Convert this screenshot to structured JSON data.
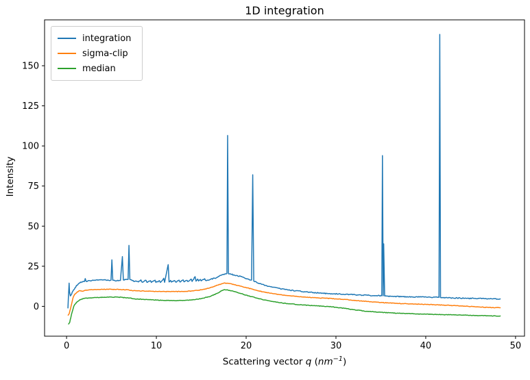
{
  "title": "1D integration",
  "axes": {
    "ylabel": "Intensity",
    "xlabel_parts": {
      "pre": "Scattering vector ",
      "q": "q",
      "mid": " (",
      "unit": "nm",
      "sup": "−1",
      "post": ")"
    }
  },
  "chart_data": {
    "type": "line",
    "title": "1D integration",
    "xlabel": "Scattering vector q (nm⁻¹)",
    "ylabel": "Intensity",
    "xlim": [
      -2.45,
      51.0
    ],
    "ylim": [
      -18.6,
      178.6
    ],
    "x_ticks": [
      0,
      10,
      20,
      30,
      40,
      50
    ],
    "y_ticks": [
      0,
      25,
      50,
      75,
      100,
      125,
      150
    ],
    "grid": false,
    "legend_position": "upper left",
    "series": [
      {
        "name": "integration",
        "color": "#1f77b4",
        "noise": 0.3,
        "points": [
          [
            0.15,
            -1
          ],
          [
            0.2,
            5
          ],
          [
            0.28,
            14.5
          ],
          [
            0.33,
            9
          ],
          [
            0.42,
            6.5
          ],
          [
            0.55,
            7.5
          ],
          [
            0.7,
            9.5
          ],
          [
            0.9,
            11
          ],
          [
            1.1,
            13
          ],
          [
            1.4,
            14.5
          ],
          [
            1.7,
            15.2
          ],
          [
            2.0,
            15.5
          ],
          [
            2.08,
            17.3
          ],
          [
            2.18,
            15.6
          ],
          [
            2.6,
            16
          ],
          [
            3.0,
            16.2
          ],
          [
            3.5,
            16.3
          ],
          [
            4.0,
            16.4
          ],
          [
            4.5,
            16.2
          ],
          [
            4.95,
            16.3
          ],
          [
            5.05,
            29
          ],
          [
            5.15,
            16.3
          ],
          [
            5.6,
            16
          ],
          [
            6.0,
            16.2
          ],
          [
            6.22,
            31
          ],
          [
            6.32,
            16.5
          ],
          [
            6.85,
            16.8
          ],
          [
            6.95,
            38
          ],
          [
            7.05,
            16.8
          ],
          [
            7.3,
            16.1
          ],
          [
            7.6,
            15.6
          ],
          [
            8.0,
            15.2
          ],
          [
            8.28,
            16.5
          ],
          [
            8.4,
            15.1
          ],
          [
            8.85,
            16.2
          ],
          [
            8.95,
            15
          ],
          [
            9.35,
            16
          ],
          [
            9.45,
            14.9
          ],
          [
            9.85,
            16.3
          ],
          [
            9.95,
            14.9
          ],
          [
            10.35,
            16
          ],
          [
            10.45,
            14.9
          ],
          [
            10.82,
            17.5
          ],
          [
            10.92,
            15
          ],
          [
            11.32,
            26
          ],
          [
            11.42,
            15.2
          ],
          [
            11.58,
            16.2
          ],
          [
            11.68,
            15.1
          ],
          [
            12.05,
            16
          ],
          [
            12.15,
            15.1
          ],
          [
            12.52,
            16.3
          ],
          [
            12.62,
            15.2
          ],
          [
            12.98,
            16.5
          ],
          [
            13.08,
            15.3
          ],
          [
            13.42,
            16.2
          ],
          [
            13.52,
            15.4
          ],
          [
            13.88,
            17
          ],
          [
            13.98,
            15.5
          ],
          [
            14.32,
            18.5
          ],
          [
            14.42,
            15.7
          ],
          [
            14.6,
            17
          ],
          [
            14.7,
            15.8
          ],
          [
            14.9,
            16.8
          ],
          [
            15.0,
            15.9
          ],
          [
            15.38,
            17.2
          ],
          [
            15.48,
            16.2
          ],
          [
            16.0,
            16.8
          ],
          [
            16.5,
            17.5
          ],
          [
            17.0,
            18.8
          ],
          [
            17.4,
            19.8
          ],
          [
            17.7,
            20.3
          ],
          [
            17.86,
            20.6
          ],
          [
            17.94,
            106.5
          ],
          [
            18.03,
            20.3
          ],
          [
            18.3,
            20
          ],
          [
            18.6,
            19.6
          ],
          [
            19.0,
            19.2
          ],
          [
            19.4,
            18.6
          ],
          [
            19.8,
            17.8
          ],
          [
            20.2,
            17
          ],
          [
            20.6,
            16.4
          ],
          [
            20.73,
            82
          ],
          [
            20.85,
            15.8
          ],
          [
            21.2,
            14.8
          ],
          [
            21.7,
            13.8
          ],
          [
            22.3,
            12.8
          ],
          [
            23.0,
            11.9
          ],
          [
            23.8,
            11
          ],
          [
            24.6,
            10.3
          ],
          [
            25.5,
            9.7
          ],
          [
            26.5,
            9.1
          ],
          [
            27.5,
            8.6
          ],
          [
            28.5,
            8.2
          ],
          [
            29.5,
            7.9
          ],
          [
            30.5,
            7.6
          ],
          [
            31.5,
            7.4
          ],
          [
            32.5,
            7.1
          ],
          [
            33.5,
            6.9
          ],
          [
            34.5,
            6.7
          ],
          [
            35.1,
            6.6
          ],
          [
            35.18,
            94
          ],
          [
            35.26,
            6.6
          ],
          [
            35.32,
            39
          ],
          [
            35.42,
            6.5
          ],
          [
            36.5,
            6.2
          ],
          [
            37.5,
            6
          ],
          [
            38.5,
            5.9
          ],
          [
            39.5,
            5.8
          ],
          [
            40.5,
            5.7
          ],
          [
            41.3,
            5.6
          ],
          [
            41.48,
            5.6
          ],
          [
            41.56,
            169.5
          ],
          [
            41.65,
            5.5
          ],
          [
            42.5,
            5.3
          ],
          [
            43.5,
            5.2
          ],
          [
            44.5,
            5
          ],
          [
            45.5,
            4.9
          ],
          [
            46.5,
            4.8
          ],
          [
            47.5,
            4.7
          ],
          [
            48.3,
            4.6
          ]
        ]
      },
      {
        "name": "sigma-clip",
        "color": "#ff7f0e",
        "noise": 0.18,
        "points": [
          [
            0.18,
            -5.5
          ],
          [
            0.3,
            -4.5
          ],
          [
            0.5,
            0
          ],
          [
            0.7,
            5
          ],
          [
            0.9,
            7.5
          ],
          [
            1.2,
            9
          ],
          [
            1.5,
            9.8
          ],
          [
            1.75,
            9.4
          ],
          [
            2.0,
            9.9
          ],
          [
            2.5,
            10.3
          ],
          [
            3.0,
            10.4
          ],
          [
            4.0,
            10.6
          ],
          [
            5.0,
            10.6
          ],
          [
            6.0,
            10.5
          ],
          [
            6.9,
            10.3
          ],
          [
            7.3,
            9.8
          ],
          [
            7.8,
            9.7
          ],
          [
            9.0,
            9.5
          ],
          [
            10.0,
            9.3
          ],
          [
            11.0,
            9.2
          ],
          [
            12.0,
            9.2
          ],
          [
            13.0,
            9.3
          ],
          [
            14.0,
            9.6
          ],
          [
            15.0,
            10.3
          ],
          [
            16.0,
            11.6
          ],
          [
            16.8,
            13.2
          ],
          [
            17.5,
            14.5
          ],
          [
            18.0,
            14.3
          ],
          [
            18.6,
            13.7
          ],
          [
            19.3,
            12.7
          ],
          [
            20.0,
            11.7
          ],
          [
            21.0,
            10.2
          ],
          [
            22.0,
            8.9
          ],
          [
            23.0,
            7.9
          ],
          [
            24.0,
            7.1
          ],
          [
            25.0,
            6.5
          ],
          [
            26.0,
            6.0
          ],
          [
            27.0,
            5.6
          ],
          [
            28.0,
            5.3
          ],
          [
            29.0,
            5.0
          ],
          [
            30.0,
            4.7
          ],
          [
            31.0,
            4.3
          ],
          [
            32.0,
            3.8
          ],
          [
            33.0,
            3.3
          ],
          [
            34.0,
            2.8
          ],
          [
            35.0,
            2.4
          ],
          [
            36.0,
            2.1
          ],
          [
            37.0,
            1.8
          ],
          [
            38.0,
            1.6
          ],
          [
            39.0,
            1.4
          ],
          [
            40.0,
            1.2
          ],
          [
            41.0,
            1.0
          ],
          [
            42.0,
            0.8
          ],
          [
            43.0,
            0.5
          ],
          [
            44.0,
            0.2
          ],
          [
            45.0,
            -0.1
          ],
          [
            46.0,
            -0.4
          ],
          [
            47.0,
            -0.7
          ],
          [
            48.3,
            -0.9
          ]
        ]
      },
      {
        "name": "median",
        "color": "#2ca02c",
        "noise": 0.18,
        "points": [
          [
            0.22,
            -11
          ],
          [
            0.35,
            -10
          ],
          [
            0.55,
            -5
          ],
          [
            0.8,
            0
          ],
          [
            1.1,
            2.5
          ],
          [
            1.5,
            4.2
          ],
          [
            2.0,
            5.0
          ],
          [
            2.5,
            5.2
          ],
          [
            3.0,
            5.4
          ],
          [
            3.5,
            5.5
          ],
          [
            4.2,
            5.7
          ],
          [
            5.0,
            5.8
          ],
          [
            5.8,
            5.7
          ],
          [
            6.5,
            5.4
          ],
          [
            7.0,
            5.2
          ],
          [
            7.5,
            4.7
          ],
          [
            8.0,
            4.5
          ],
          [
            9.0,
            4.2
          ],
          [
            10.0,
            3.9
          ],
          [
            11.0,
            3.7
          ],
          [
            12.0,
            3.6
          ],
          [
            13.0,
            3.7
          ],
          [
            14.0,
            4.0
          ],
          [
            15.0,
            4.8
          ],
          [
            16.0,
            6.2
          ],
          [
            16.8,
            8.2
          ],
          [
            17.5,
            10.3
          ],
          [
            18.0,
            10.1
          ],
          [
            18.6,
            9.3
          ],
          [
            19.3,
            8.2
          ],
          [
            20.0,
            7.0
          ],
          [
            21.0,
            5.4
          ],
          [
            22.0,
            4.0
          ],
          [
            23.0,
            2.9
          ],
          [
            24.0,
            2.1
          ],
          [
            25.0,
            1.5
          ],
          [
            26.0,
            1.0
          ],
          [
            27.0,
            0.6
          ],
          [
            28.0,
            0.3
          ],
          [
            29.0,
            0.0
          ],
          [
            30.0,
            -0.6
          ],
          [
            31.0,
            -1.3
          ],
          [
            32.0,
            -2.1
          ],
          [
            33.0,
            -2.8
          ],
          [
            34.0,
            -3.3
          ],
          [
            35.0,
            -3.7
          ],
          [
            36.0,
            -4.0
          ],
          [
            37.0,
            -4.3
          ],
          [
            38.0,
            -4.5
          ],
          [
            39.0,
            -4.7
          ],
          [
            40.0,
            -4.9
          ],
          [
            41.0,
            -5.0
          ],
          [
            42.0,
            -5.2
          ],
          [
            43.0,
            -5.3
          ],
          [
            44.0,
            -5.5
          ],
          [
            45.0,
            -5.6
          ],
          [
            46.0,
            -5.8
          ],
          [
            47.0,
            -5.9
          ],
          [
            48.3,
            -6.0
          ]
        ]
      }
    ]
  }
}
